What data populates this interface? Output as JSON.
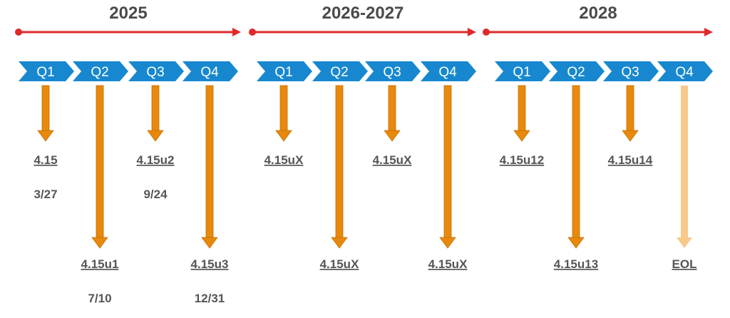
{
  "sections": [
    {
      "title": "2025",
      "quarters": [
        "Q1",
        "Q2",
        "Q3",
        "Q4"
      ],
      "releases": [
        {
          "label": "4.15",
          "date": "3/27"
        },
        {
          "label": "4.15u1",
          "date": "7/10"
        },
        {
          "label": "4.15u2",
          "date": "9/24"
        },
        {
          "label": "4.15u3",
          "date": "12/31"
        }
      ]
    },
    {
      "title": "2026-2027",
      "quarters": [
        "Q1",
        "Q2",
        "Q3",
        "Q4"
      ],
      "releases": [
        {
          "label": "4.15uX"
        },
        {
          "label": "4.15uX"
        },
        {
          "label": "4.15uX"
        },
        {
          "label": "4.15uX"
        }
      ]
    },
    {
      "title": "2028",
      "quarters": [
        "Q1",
        "Q2",
        "Q3",
        "Q4"
      ],
      "releases": [
        {
          "label": "4.15u12"
        },
        {
          "label": "4.15u13"
        },
        {
          "label": "4.15u14"
        },
        {
          "label": "EOL"
        }
      ]
    }
  ]
}
